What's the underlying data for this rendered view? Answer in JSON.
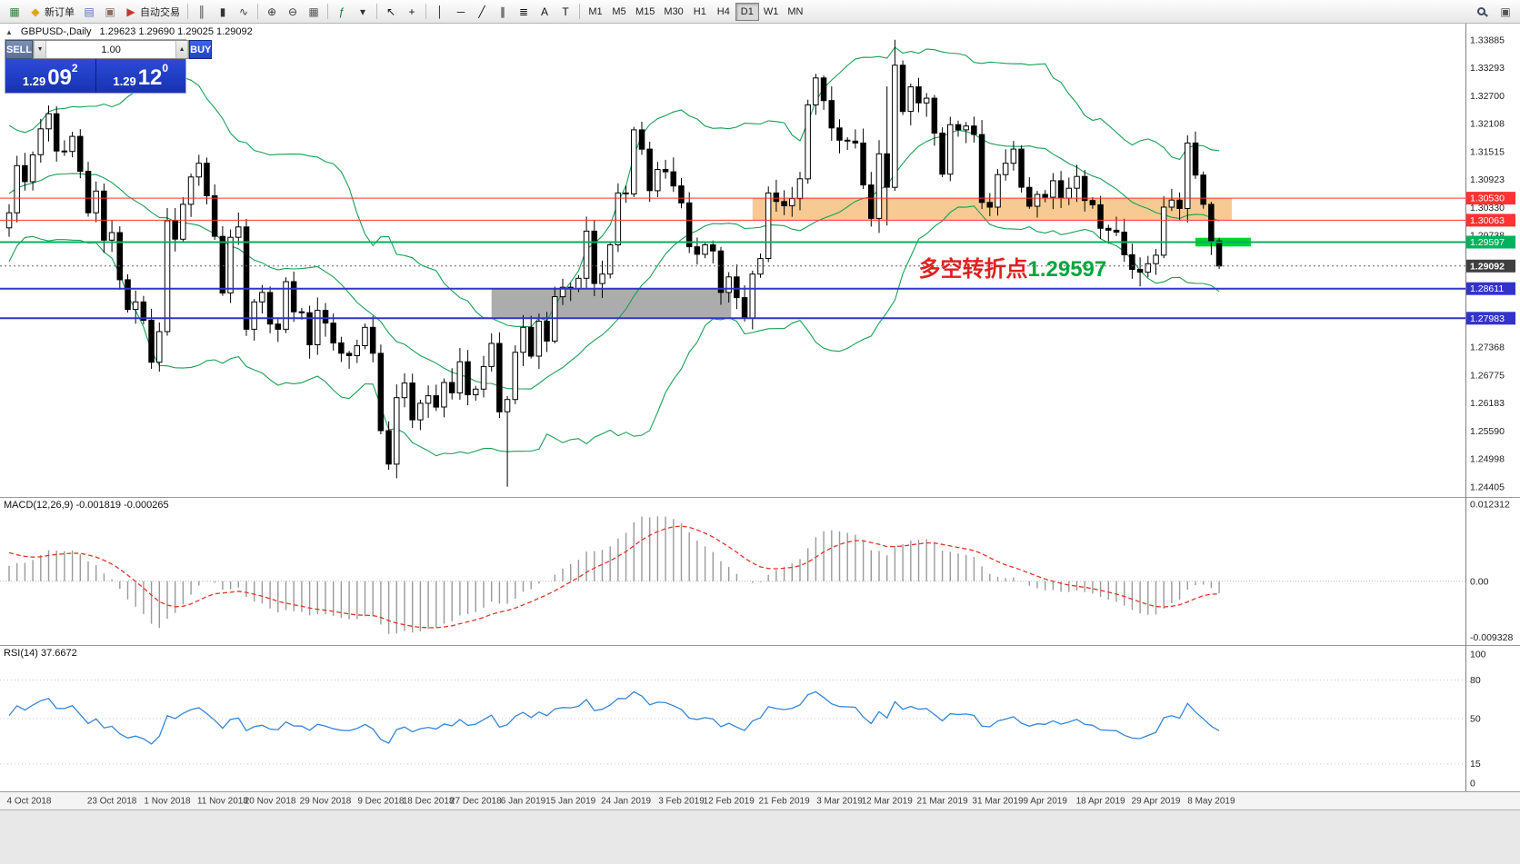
{
  "toolbar": {
    "items": [
      {
        "name": "new-chart-button",
        "glyph": "▦",
        "color": "#2e7d32"
      },
      {
        "name": "new-order-button",
        "glyph": "◆",
        "color": "#e0a414",
        "label": "新订单"
      },
      {
        "name": "profiles-button",
        "glyph": "▤",
        "color": "#5c6bc0"
      },
      {
        "name": "charts-cascade-button",
        "glyph": "▣",
        "color": "#8d6e63"
      },
      {
        "name": "auto-trading-button",
        "glyph": "▶",
        "color": "#c0392b",
        "label": "自动交易"
      },
      {
        "sep": true
      },
      {
        "name": "ohlc-bars-button",
        "glyph": "║",
        "color": "#333333"
      },
      {
        "name": "candlestick-button",
        "glyph": "▮",
        "color": "#333333"
      },
      {
        "name": "line-chart-button",
        "glyph": "∿",
        "color": "#333333"
      },
      {
        "sep": true
      },
      {
        "name": "zoom-in-button",
        "glyph": "⊕",
        "color": "#333333"
      },
      {
        "name": "zoom-out-button",
        "glyph": "⊖",
        "color": "#333333"
      },
      {
        "name": "tile-windows-button",
        "glyph": "▦",
        "color": "#555555"
      },
      {
        "sep": true
      },
      {
        "name": "indicators-button",
        "glyph": "ƒ",
        "color": "#0a7d2c"
      },
      {
        "name": "templates-button",
        "glyph": "▾",
        "color": "#333333"
      },
      {
        "sep": true
      },
      {
        "name": "cursor-button",
        "glyph": "↖",
        "color": "#111111"
      },
      {
        "name": "crosshair-button",
        "glyph": "+",
        "color": "#111111"
      },
      {
        "sep": true
      },
      {
        "name": "vertical-line-button",
        "glyph": "│",
        "color": "#111111"
      },
      {
        "name": "horizontal-line-button",
        "glyph": "─",
        "color": "#111111"
      },
      {
        "name": "trendline-button",
        "glyph": "╱",
        "color": "#111111"
      },
      {
        "name": "equidistant-channel-button",
        "glyph": "∥",
        "color": "#111111"
      },
      {
        "name": "fibonacci-button",
        "glyph": "≣",
        "color": "#111111"
      },
      {
        "name": "text-button",
        "glyph": "A",
        "color": "#111111"
      },
      {
        "name": "label-button",
        "glyph": "T",
        "color": "#111111"
      },
      {
        "sep": true
      }
    ],
    "timeframes": [
      "M1",
      "M5",
      "M15",
      "M30",
      "H1",
      "H4",
      "D1",
      "W1",
      "MN"
    ],
    "active_timeframe": "D1",
    "items_right": [
      {
        "name": "search-button",
        "icon": "magnifier"
      },
      {
        "name": "panels-button",
        "glyph": "▣",
        "color": "#555555"
      }
    ]
  },
  "chart_header": {
    "collapse_glyph": "▲",
    "symbol": "GBPUSD-,Daily",
    "ohlc": "1.29623 1.29690 1.29025 1.29092"
  },
  "trade_panel": {
    "sell_label": "SELL",
    "buy_label": "BUY",
    "volume": "1.00",
    "vol_down_glyph": "▼",
    "vol_up_glyph": "▲",
    "sell_big": "1.29",
    "sell_pips": "09",
    "sell_sup": "2",
    "buy_big": "1.29",
    "buy_pips": "12",
    "buy_sup": "0"
  },
  "macd_panel": {
    "label": "MACD(12,26,9) -0.001819 -0.000265",
    "axis": [
      "0.012312",
      "0.00",
      "-0.009328"
    ]
  },
  "rsi_panel": {
    "label": "RSI(14) 37.6672",
    "axis": [
      "100",
      "80",
      "50",
      "15",
      "0"
    ]
  },
  "annotation": {
    "text_red": "多空转折点",
    "text_green": "1.29597",
    "red_color": "#e02020",
    "green_color": "#00a63c",
    "i": 115,
    "price": 1.2888
  },
  "chart_data": {
    "type": "candlestick",
    "symbol": "GBPUSD",
    "period": "Daily",
    "indicators": [
      "Bollinger Bands (20,2)",
      "MACD(12,26,9)",
      "RSI(14)"
    ],
    "last_ohlc": {
      "open": 1.29623,
      "high": 1.2969,
      "low": 1.29025,
      "close": 1.29092
    },
    "current_price": 1.29092,
    "price_axis": {
      "max": 1.33885,
      "min": 1.24405,
      "ticks": [
        1.33885,
        1.33293,
        1.327,
        1.32108,
        1.31515,
        1.30923,
        1.3033,
        1.29738,
        1.29145,
        1.28553,
        1.2796,
        1.27368,
        1.26775,
        1.26183,
        1.2559,
        1.24998,
        1.24405
      ]
    },
    "macd_scale": {
      "max": 0.012312,
      "min": -0.009328
    },
    "rsi_levels": [
      80,
      50,
      15
    ],
    "colors": {
      "bollinger": "#18a054",
      "candle_up": "#ffffff",
      "candle_down": "#000000",
      "macd_histogram": "#9a9a9a",
      "macd_signal": "#e0352b",
      "rsi_line": "#3585d8",
      "axis_text": "#222222"
    },
    "hlines": [
      {
        "price": 1.3053,
        "color": "#ff3333",
        "width": 1
      },
      {
        "price": 1.30063,
        "color": "#ff3333",
        "width": 1
      },
      {
        "price": 1.29597,
        "color": "#00b25c",
        "width": 2
      },
      {
        "price": 1.28611,
        "color": "#3333cc",
        "width": 2
      },
      {
        "price": 1.27983,
        "color": "#3333cc",
        "width": 2
      }
    ],
    "rectangles": [
      {
        "name": "supply-zone-rectangle",
        "i1": 94,
        "i2": 154.6,
        "p1": 1.3053,
        "p2": 1.30063,
        "fill": "#f5c78c",
        "opacity": 0.95
      },
      {
        "name": "gray-zone-rectangle",
        "i1": 61,
        "i2": 91.3,
        "p1": 1.28611,
        "p2": 1.27983,
        "fill": "#a0a0a0",
        "opacity": 0.88
      },
      {
        "name": "green-highlight-rectangle",
        "i1": 150,
        "i2": 157,
        "p1": 1.2969,
        "p2": 1.29505,
        "fill": "#00d42a",
        "opacity": 1
      }
    ],
    "date_labels": [
      {
        "i": 0,
        "t": "4 Oct 2018"
      },
      {
        "i": 13,
        "t": "23 Oct 2018"
      },
      {
        "i": 20,
        "t": "1 Nov 2018"
      },
      {
        "i": 27,
        "t": "11 Nov 2018"
      },
      {
        "i": 33,
        "t": "20 Nov 2018"
      },
      {
        "i": 40,
        "t": "29 Nov 2018"
      },
      {
        "i": 47,
        "t": "9 Dec 2018"
      },
      {
        "i": 53,
        "t": "18 Dec 2018"
      },
      {
        "i": 59,
        "t": "27 Dec 2018"
      },
      {
        "i": 65,
        "t": "6 Jan 2019"
      },
      {
        "i": 71,
        "t": "15 Jan 2019"
      },
      {
        "i": 78,
        "t": "24 Jan 2019"
      },
      {
        "i": 85,
        "t": "3 Feb 2019"
      },
      {
        "i": 91,
        "t": "12 Feb 2019"
      },
      {
        "i": 98,
        "t": "21 Feb 2019"
      },
      {
        "i": 105,
        "t": "3 Mar 2019"
      },
      {
        "i": 111,
        "t": "12 Mar 2019"
      },
      {
        "i": 118,
        "t": "21 Mar 2019"
      },
      {
        "i": 125,
        "t": "31 Mar 2019"
      },
      {
        "i": 131,
        "t": "9 Apr 2019"
      },
      {
        "i": 138,
        "t": "18 Apr 2019"
      },
      {
        "i": 145,
        "t": "29 Apr 2019"
      },
      {
        "i": 152,
        "t": "8 May 2019"
      }
    ],
    "candles": {
      "first_open": 1.299,
      "pre_closes": [
        1.2815,
        1.2842,
        1.2876,
        1.289,
        1.2831,
        1.2879,
        1.3021,
        1.3001,
        1.2962,
        1.2921,
        1.2862,
        1.2891,
        1.2961,
        1.3052,
        1.3098,
        1.3052,
        1.3071,
        1.3141,
        1.3158,
        1.3121,
        1.3066,
        1.3061,
        1.3111,
        1.3171,
        1.3151,
        1.3122,
        1.3042,
        1.3002,
        1.2975,
        1.299
      ],
      "closes": [
        1.3022,
        1.3122,
        1.3088,
        1.3145,
        1.32,
        1.3232,
        1.3153,
        1.3152,
        1.3184,
        1.311,
        1.3022,
        1.3068,
        1.2964,
        1.298,
        1.288,
        1.2817,
        1.2833,
        1.2794,
        1.2705,
        1.277,
        1.3005,
        1.2966,
        1.304,
        1.3098,
        1.3127,
        1.3058,
        1.2972,
        1.2852,
        1.297,
        1.2992,
        1.2775,
        1.2833,
        1.2853,
        1.2786,
        1.2775,
        1.2876,
        1.2812,
        1.281,
        1.2742,
        1.2815,
        1.2788,
        1.2746,
        1.2724,
        1.2719,
        1.274,
        1.2779,
        1.2724,
        1.256,
        1.2489,
        1.263,
        1.2661,
        1.2583,
        1.2618,
        1.2634,
        1.261,
        1.2662,
        1.264,
        1.2706,
        1.2636,
        1.2648,
        1.2696,
        1.2745,
        1.26,
        1.2626,
        1.2726,
        1.2779,
        1.2718,
        1.2792,
        1.275,
        1.2844,
        1.2864,
        1.2861,
        1.2883,
        1.2983,
        1.2872,
        1.2892,
        1.2954,
        1.3064,
        1.3062,
        1.3198,
        1.3157,
        1.3069,
        1.3114,
        1.3109,
        1.3079,
        1.3043,
        1.295,
        1.2934,
        1.2954,
        1.2941,
        1.2853,
        1.2886,
        1.2842,
        1.2799,
        1.2892,
        1.2925,
        1.3064,
        1.3046,
        1.3037,
        1.3052,
        1.3094,
        1.3251,
        1.3308,
        1.326,
        1.3202,
        1.3176,
        1.3174,
        1.317,
        1.3081,
        1.301,
        1.3147,
        1.3076,
        1.3335,
        1.3237,
        1.3289,
        1.3255,
        1.3265,
        1.3191,
        1.3104,
        1.3209,
        1.3198,
        1.3206,
        1.3188,
        1.3044,
        1.3034,
        1.3103,
        1.3127,
        1.3157,
        1.3076,
        1.3036,
        1.3061,
        1.3055,
        1.309,
        1.3053,
        1.3074,
        1.3099,
        1.3048,
        1.3039,
        1.2989,
        1.2985,
        1.2981,
        1.2933,
        1.2902,
        1.2896,
        1.2914,
        1.2932,
        1.3034,
        1.3049,
        1.3031,
        1.317,
        1.3102,
        1.304,
        1.2962,
        1.29092
      ],
      "overrides": {
        "48": {
          "l": 1.2477
        },
        "63": {
          "l": 1.2441
        },
        "111": {
          "h": 1.329,
          "l": 1.2995
        },
        "112": {
          "h": 1.3389
        },
        "153": {
          "o": 1.29623,
          "h": 1.2969,
          "l": 1.29025,
          "c": 1.29092
        }
      }
    }
  }
}
